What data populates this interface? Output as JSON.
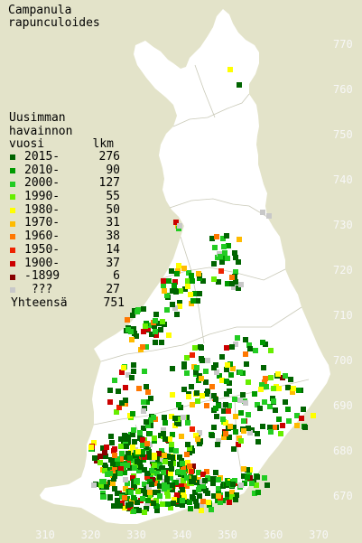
{
  "title_line1": "Campanula",
  "title_line2": "rapunculoides",
  "legend": {
    "head1": "Uusimman",
    "head2": "havainnon",
    "head3": "vuosi",
    "head3_right": "lkm",
    "items": [
      {
        "label": "2015-",
        "count": "276",
        "color": "#006400"
      },
      {
        "label": "2010-",
        "count": "90",
        "color": "#009a00"
      },
      {
        "label": "2000-",
        "count": "127",
        "color": "#22cc22"
      },
      {
        "label": "1990-",
        "count": "55",
        "color": "#66ee00"
      },
      {
        "label": "1980-",
        "count": "50",
        "color": "#ffff00"
      },
      {
        "label": "1970-",
        "count": "31",
        "color": "#ffbb00"
      },
      {
        "label": "1960-",
        "count": "38",
        "color": "#ff7700"
      },
      {
        "label": "1950-",
        "count": "14",
        "color": "#ee2200"
      },
      {
        "label": "1900-",
        "count": "37",
        "color": "#cc0000"
      },
      {
        "label": "-1899",
        "count": "6",
        "color": "#880000"
      },
      {
        "label": " ???",
        "count": "27",
        "color": "#c8c8c8"
      }
    ],
    "total_label": "Yhteensä",
    "total_count": "751"
  },
  "y_ticks": [
    "770",
    "760",
    "750",
    "740",
    "730",
    "720",
    "710",
    "700",
    "690",
    "680",
    "670"
  ],
  "x_ticks": [
    "310",
    "320",
    "330",
    "340",
    "350",
    "360",
    "370"
  ]
}
